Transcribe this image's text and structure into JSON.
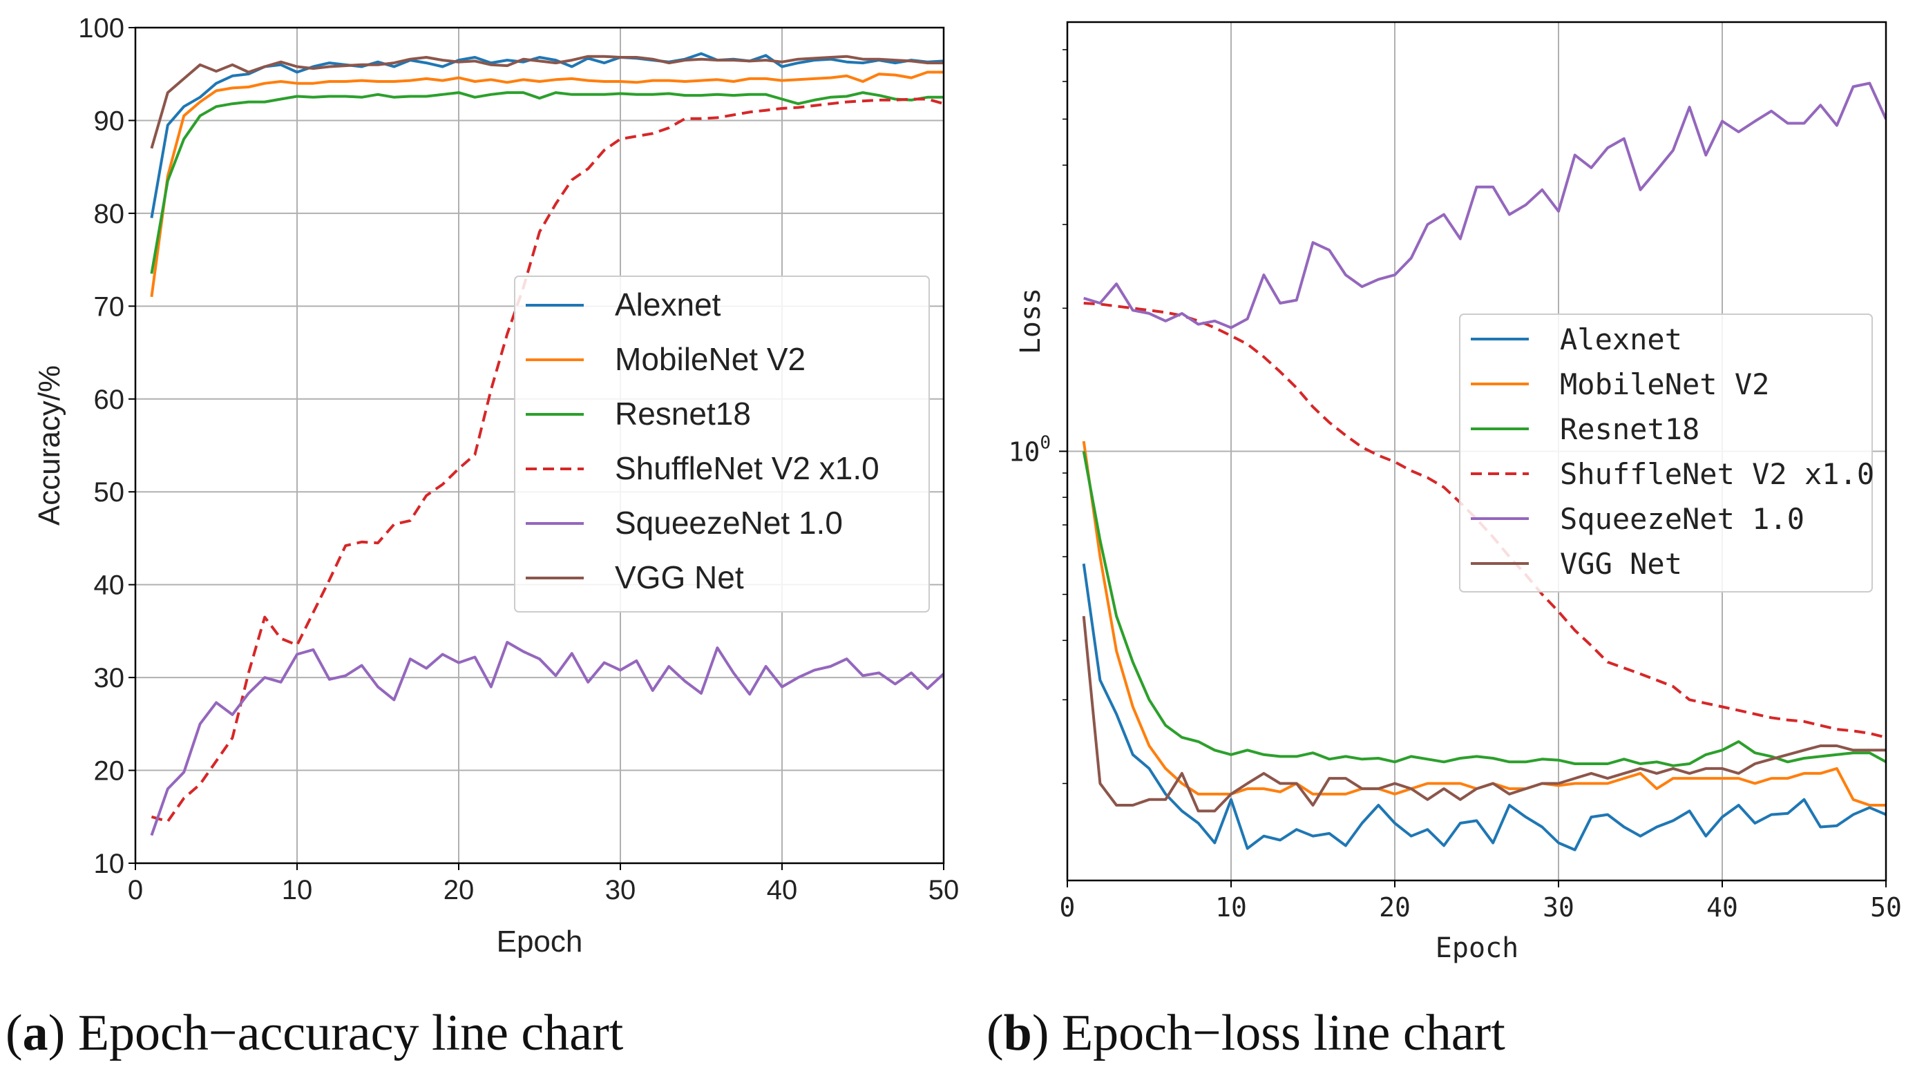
{
  "captions": [
    {
      "open": "(",
      "letter": "a",
      "close": ")",
      "text": " Epoch−accuracy line chart"
    },
    {
      "open": "(",
      "letter": "b",
      "close": ")",
      "text": " Epoch−loss line chart"
    }
  ],
  "chart_data": [
    {
      "type": "line",
      "title": "",
      "xlabel": "Epoch",
      "ylabel": "Accuracy/%",
      "xlim": [
        0,
        50
      ],
      "ylim": [
        10,
        100
      ],
      "xticks": [
        0,
        10,
        20,
        30,
        40,
        50
      ],
      "yticks": [
        10,
        20,
        30,
        40,
        50,
        60,
        70,
        80,
        90,
        100
      ],
      "grid": true,
      "legend": "center-right",
      "x": [
        1,
        2,
        3,
        4,
        5,
        6,
        7,
        8,
        9,
        10,
        11,
        12,
        13,
        14,
        15,
        16,
        17,
        18,
        19,
        20,
        21,
        22,
        23,
        24,
        25,
        26,
        27,
        28,
        29,
        30,
        31,
        32,
        33,
        34,
        35,
        36,
        37,
        38,
        39,
        40,
        41,
        42,
        43,
        44,
        45,
        46,
        47,
        48,
        49,
        50
      ],
      "series": [
        {
          "name": "Alexnet",
          "color": "#1f77b4",
          "dash": false,
          "values": [
            79.5,
            89.5,
            91.5,
            92.5,
            94,
            94.8,
            95,
            95.8,
            96,
            95.2,
            95.8,
            96.2,
            96,
            95.8,
            96.3,
            95.8,
            96.5,
            96.2,
            95.8,
            96.5,
            96.8,
            96.2,
            96.5,
            96.3,
            96.8,
            96.5,
            95.8,
            96.7,
            96.2,
            96.8,
            96.7,
            96.5,
            96.3,
            96.6,
            97.2,
            96.5,
            96.6,
            96.4,
            97,
            95.8,
            96.2,
            96.5,
            96.6,
            96.3,
            96.2,
            96.5,
            96.2,
            96.5,
            96.3,
            96.4
          ]
        },
        {
          "name": "MobileNet V2",
          "color": "#ff7f0e",
          "dash": false,
          "values": [
            71,
            84,
            90.5,
            92,
            93.2,
            93.5,
            93.6,
            94,
            94.2,
            94,
            94,
            94.2,
            94.2,
            94.3,
            94.2,
            94.2,
            94.3,
            94.5,
            94.3,
            94.6,
            94.2,
            94.4,
            94.1,
            94.4,
            94.2,
            94.4,
            94.5,
            94.3,
            94.2,
            94.2,
            94.1,
            94.3,
            94.3,
            94.2,
            94.3,
            94.4,
            94.2,
            94.5,
            94.5,
            94.3,
            94.4,
            94.5,
            94.6,
            94.8,
            94.2,
            95,
            94.9,
            94.6,
            95.2,
            95.2
          ]
        },
        {
          "name": "Resnet18",
          "color": "#2ca02c",
          "dash": false,
          "values": [
            73.5,
            83.5,
            88,
            90.5,
            91.5,
            91.8,
            92,
            92,
            92.3,
            92.6,
            92.5,
            92.6,
            92.6,
            92.5,
            92.8,
            92.5,
            92.6,
            92.6,
            92.8,
            93,
            92.5,
            92.8,
            93,
            93,
            92.4,
            93,
            92.8,
            92.8,
            92.8,
            92.9,
            92.8,
            92.8,
            92.9,
            92.7,
            92.7,
            92.8,
            92.7,
            92.8,
            92.8,
            92.3,
            91.8,
            92.2,
            92.5,
            92.6,
            93,
            92.7,
            92.3,
            92.2,
            92.5,
            92.5
          ]
        },
        {
          "name": "ShuffleNet V2 x1.0",
          "color": "#d62728",
          "dash": true,
          "values": [
            15,
            14.5,
            17,
            18.5,
            21,
            23.5,
            30.5,
            36.5,
            34.2,
            33.5,
            37,
            40.5,
            44.2,
            44.6,
            44.5,
            46.5,
            46.9,
            49.6,
            50.8,
            52.5,
            54,
            61,
            67,
            72,
            78,
            81,
            83.6,
            84.8,
            86.8,
            88,
            88.3,
            88.6,
            89.2,
            90.2,
            90.2,
            90.3,
            90.6,
            90.9,
            91.1,
            91.3,
            91.4,
            91.6,
            91.8,
            92,
            92.1,
            92.2,
            92.2,
            92.3,
            92.3,
            91.8
          ]
        },
        {
          "name": "SqueezeNet 1.0",
          "color": "#9467bd",
          "dash": false,
          "values": [
            13,
            18,
            19.8,
            25,
            27.3,
            26,
            28.3,
            30,
            29.5,
            32.5,
            33,
            29.8,
            30.2,
            31.3,
            29,
            27.6,
            32,
            31,
            32.5,
            31.6,
            32.2,
            29,
            33.8,
            32.8,
            32,
            30.2,
            32.6,
            29.5,
            31.6,
            30.8,
            31.8,
            28.6,
            31.2,
            29.6,
            28.3,
            33.2,
            30.5,
            28.2,
            31.2,
            29,
            30,
            30.8,
            31.2,
            32,
            30.2,
            30.5,
            29.3,
            30.5,
            28.8,
            30.4
          ]
        },
        {
          "name": "VGG Net",
          "color": "#8c564b",
          "dash": false,
          "values": [
            87,
            93,
            94.5,
            96,
            95.3,
            96,
            95.2,
            95.8,
            96.3,
            95.8,
            95.6,
            95.8,
            95.9,
            96,
            96,
            96.2,
            96.6,
            96.8,
            96.5,
            96.3,
            96.4,
            96,
            95.9,
            96.6,
            96.4,
            96.2,
            96.5,
            96.9,
            96.9,
            96.8,
            96.8,
            96.6,
            96.2,
            96.5,
            96.6,
            96.5,
            96.5,
            96.4,
            96.5,
            96.3,
            96.6,
            96.7,
            96.8,
            96.9,
            96.6,
            96.6,
            96.5,
            96.4,
            96.2,
            96.2
          ]
        }
      ]
    },
    {
      "type": "line",
      "title": "",
      "xlabel": "Epoch",
      "ylabel": "Loss",
      "xlim": [
        0,
        50
      ],
      "ylim": [
        0.125,
        8
      ],
      "yscale": "log",
      "xticks": [
        0,
        10,
        20,
        30,
        40,
        50
      ],
      "yticks": [
        {
          "value": 1,
          "label": "10",
          "exp": "0"
        }
      ],
      "grid": true,
      "legend": "center-right",
      "x": [
        1,
        2,
        3,
        4,
        5,
        6,
        7,
        8,
        9,
        10,
        11,
        12,
        13,
        14,
        15,
        16,
        17,
        18,
        19,
        20,
        21,
        22,
        23,
        24,
        25,
        26,
        27,
        28,
        29,
        30,
        31,
        32,
        33,
        34,
        35,
        36,
        37,
        38,
        39,
        40,
        41,
        42,
        43,
        44,
        45,
        46,
        47,
        48,
        49,
        50
      ],
      "series": [
        {
          "name": "Alexnet",
          "color": "#1f77b4",
          "dash": false,
          "values": [
            0.58,
            0.33,
            0.28,
            0.23,
            0.215,
            0.19,
            0.175,
            0.165,
            0.15,
            0.185,
            0.146,
            0.155,
            0.152,
            0.16,
            0.155,
            0.157,
            0.148,
            0.165,
            0.18,
            0.165,
            0.155,
            0.16,
            0.148,
            0.165,
            0.167,
            0.15,
            0.18,
            0.17,
            0.162,
            0.15,
            0.145,
            0.17,
            0.172,
            0.162,
            0.155,
            0.162,
            0.167,
            0.175,
            0.155,
            0.17,
            0.18,
            0.165,
            0.172,
            0.173,
            0.185,
            0.162,
            0.163,
            0.172,
            0.178,
            0.172
          ]
        },
        {
          "name": "MobileNet V2",
          "color": "#ff7f0e",
          "dash": false,
          "values": [
            1.05,
            0.6,
            0.38,
            0.29,
            0.24,
            0.215,
            0.2,
            0.19,
            0.19,
            0.19,
            0.195,
            0.195,
            0.192,
            0.2,
            0.19,
            0.19,
            0.19,
            0.195,
            0.195,
            0.19,
            0.195,
            0.2,
            0.2,
            0.2,
            0.195,
            0.2,
            0.195,
            0.195,
            0.2,
            0.198,
            0.2,
            0.2,
            0.2,
            0.205,
            0.21,
            0.195,
            0.205,
            0.205,
            0.205,
            0.205,
            0.205,
            0.2,
            0.205,
            0.205,
            0.21,
            0.21,
            0.215,
            0.185,
            0.18,
            0.18
          ]
        },
        {
          "name": "Resnet18",
          "color": "#2ca02c",
          "dash": false,
          "values": [
            1.0,
            0.65,
            0.45,
            0.36,
            0.3,
            0.265,
            0.25,
            0.245,
            0.235,
            0.23,
            0.235,
            0.23,
            0.228,
            0.228,
            0.232,
            0.225,
            0.228,
            0.225,
            0.226,
            0.222,
            0.228,
            0.225,
            0.222,
            0.226,
            0.228,
            0.226,
            0.222,
            0.222,
            0.225,
            0.224,
            0.22,
            0.22,
            0.22,
            0.225,
            0.22,
            0.222,
            0.218,
            0.22,
            0.23,
            0.235,
            0.245,
            0.232,
            0.228,
            0.222,
            0.226,
            0.228,
            0.23,
            0.232,
            0.232,
            0.222
          ]
        },
        {
          "name": "ShuffleNet V2 x1.0",
          "color": "#d62728",
          "dash": true,
          "values": [
            2.05,
            2.04,
            2.02,
            2.0,
            1.98,
            1.96,
            1.93,
            1.88,
            1.82,
            1.75,
            1.68,
            1.58,
            1.47,
            1.36,
            1.24,
            1.15,
            1.08,
            1.02,
            0.98,
            0.95,
            0.91,
            0.88,
            0.84,
            0.78,
            0.72,
            0.66,
            0.6,
            0.55,
            0.5,
            0.46,
            0.42,
            0.39,
            0.36,
            0.35,
            0.34,
            0.33,
            0.32,
            0.3,
            0.295,
            0.29,
            0.285,
            0.28,
            0.275,
            0.272,
            0.27,
            0.265,
            0.26,
            0.258,
            0.255,
            0.25
          ]
        },
        {
          "name": "SqueezeNet 1.0",
          "color": "#9467bd",
          "dash": false,
          "values": [
            2.1,
            2.05,
            2.25,
            1.98,
            1.95,
            1.88,
            1.95,
            1.85,
            1.88,
            1.82,
            1.9,
            2.35,
            2.05,
            2.08,
            2.75,
            2.65,
            2.35,
            2.22,
            2.3,
            2.35,
            2.55,
            3.0,
            3.15,
            2.8,
            3.6,
            3.6,
            3.15,
            3.3,
            3.55,
            3.2,
            4.2,
            3.95,
            4.35,
            4.55,
            3.55,
            3.9,
            4.3,
            5.3,
            4.2,
            4.95,
            4.7,
            4.95,
            5.2,
            4.9,
            4.9,
            5.35,
            4.85,
            5.85,
            5.95,
            5.0
          ]
        },
        {
          "name": "VGG Net",
          "color": "#8c564b",
          "dash": false,
          "values": [
            0.45,
            0.2,
            0.18,
            0.18,
            0.185,
            0.185,
            0.21,
            0.175,
            0.175,
            0.19,
            0.2,
            0.21,
            0.2,
            0.2,
            0.18,
            0.205,
            0.205,
            0.195,
            0.195,
            0.2,
            0.195,
            0.185,
            0.195,
            0.185,
            0.195,
            0.2,
            0.19,
            0.195,
            0.2,
            0.2,
            0.205,
            0.21,
            0.205,
            0.21,
            0.215,
            0.21,
            0.215,
            0.21,
            0.215,
            0.215,
            0.21,
            0.22,
            0.225,
            0.23,
            0.235,
            0.24,
            0.24,
            0.235,
            0.235,
            0.235
          ]
        }
      ]
    }
  ]
}
